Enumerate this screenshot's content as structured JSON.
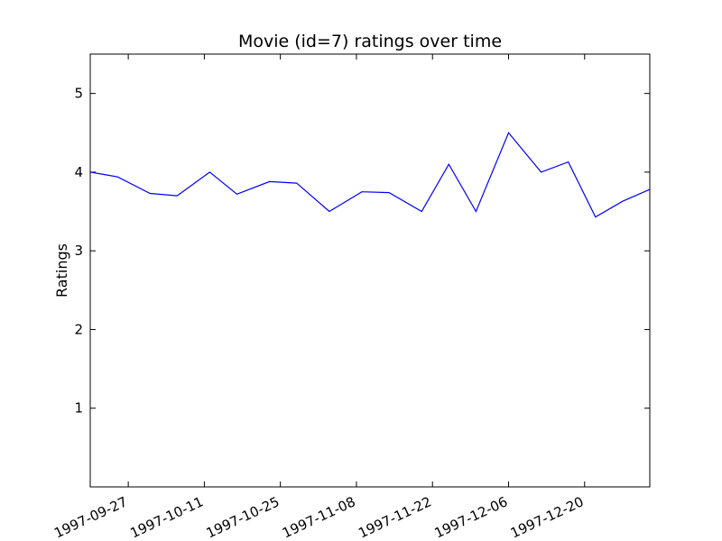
{
  "chart_data": {
    "type": "line",
    "title": "Movie (id=7) ratings over time",
    "xlabel": "",
    "ylabel": "Ratings",
    "x_axis_type": "date",
    "xlim": [
      "1997-09-20",
      "1998-01-01"
    ],
    "ylim": [
      0,
      5.5
    ],
    "yticks": [
      1,
      2,
      3,
      4,
      5
    ],
    "xticks": [
      "1997-09-27",
      "1997-10-11",
      "1997-10-25",
      "1997-11-08",
      "1997-11-22",
      "1997-12-06",
      "1997-12-20"
    ],
    "grid": false,
    "legend": "none",
    "series": [
      {
        "color": "#0000ff",
        "x": [
          "1997-09-20",
          "1997-09-25",
          "1997-10-01",
          "1997-10-06",
          "1997-10-12",
          "1997-10-17",
          "1997-10-23",
          "1997-10-28",
          "1997-11-03",
          "1997-11-09",
          "1997-11-14",
          "1997-11-20",
          "1997-11-25",
          "1997-11-30",
          "1997-12-06",
          "1997-12-12",
          "1997-12-17",
          "1997-12-22",
          "1997-12-27",
          "1998-01-01"
        ],
        "y": [
          4.0,
          3.94,
          3.73,
          3.7,
          4.0,
          3.72,
          3.88,
          3.86,
          3.5,
          3.75,
          3.74,
          3.5,
          4.1,
          3.5,
          4.5,
          4.0,
          4.13,
          3.43,
          3.63,
          3.78
        ]
      }
    ]
  }
}
